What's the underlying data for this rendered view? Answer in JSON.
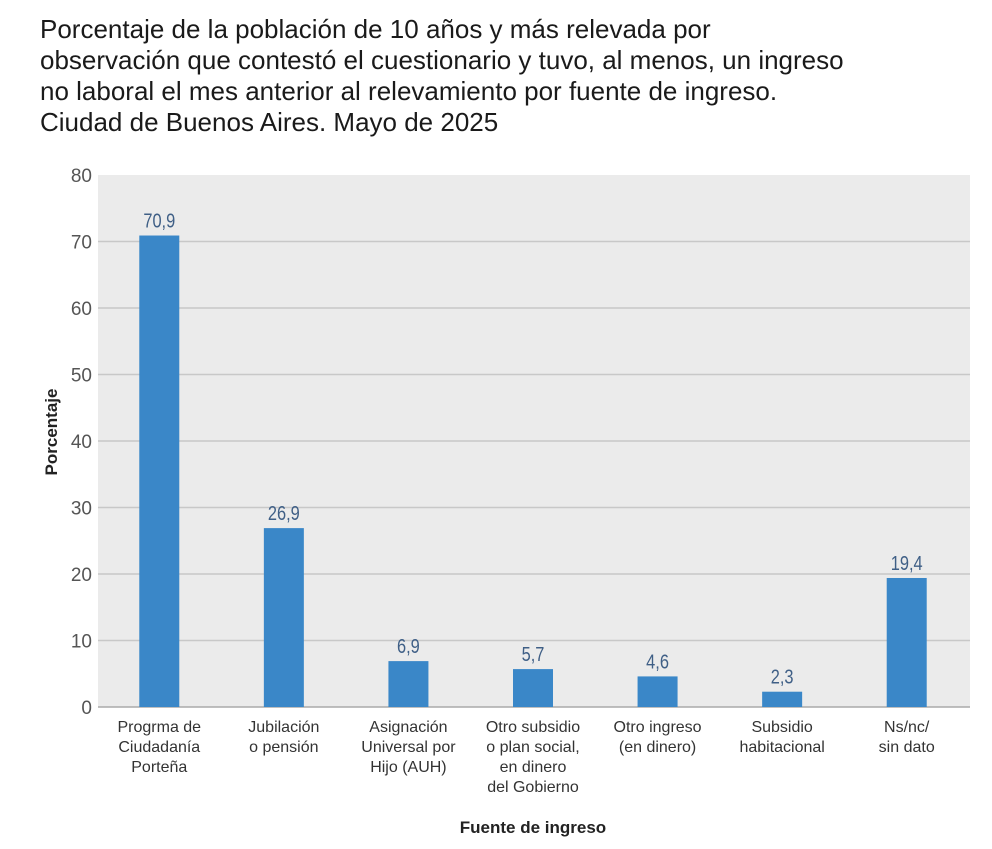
{
  "chart_data": {
    "type": "bar",
    "title": " Porcentaje de la población de 10 años y más relevada por\nobservación que contestó el cuestionario y tuvo, al menos, un ingreso\nno laboral el mes anterior al relevamiento por fuente de ingreso.\nCiudad de Buenos Aires. Mayo de 2025",
    "xlabel": "Fuente de ingreso",
    "ylabel": "Porcentaje",
    "ylim": [
      0,
      80
    ],
    "yticks": [
      0,
      10,
      20,
      30,
      40,
      50,
      60,
      70,
      80
    ],
    "grid": true,
    "categories": [
      "Progrma de\nCiudadanía\nPorteña",
      "Jubilación\no pensión",
      "Asignación\nUniversal por\nHijo (AUH)",
      "Otro subsidio\no plan social,\nen dinero\ndel Gobierno",
      "Otro ingreso\n(en dinero)",
      "Subsidio\nhabitacional",
      "Ns/nc/\nsin dato"
    ],
    "values": [
      70.9,
      26.9,
      6.9,
      5.7,
      4.6,
      2.3,
      19.4
    ],
    "data_labels": [
      "70,9",
      "26,9",
      "6,9",
      "5,7",
      "4,6",
      "2,3",
      "19,4"
    ],
    "colors": {
      "bar": "#3a87c8",
      "data_label": "#3f5f86",
      "plot_bg": "#ebebeb",
      "grid": "#c8c8c8"
    }
  }
}
